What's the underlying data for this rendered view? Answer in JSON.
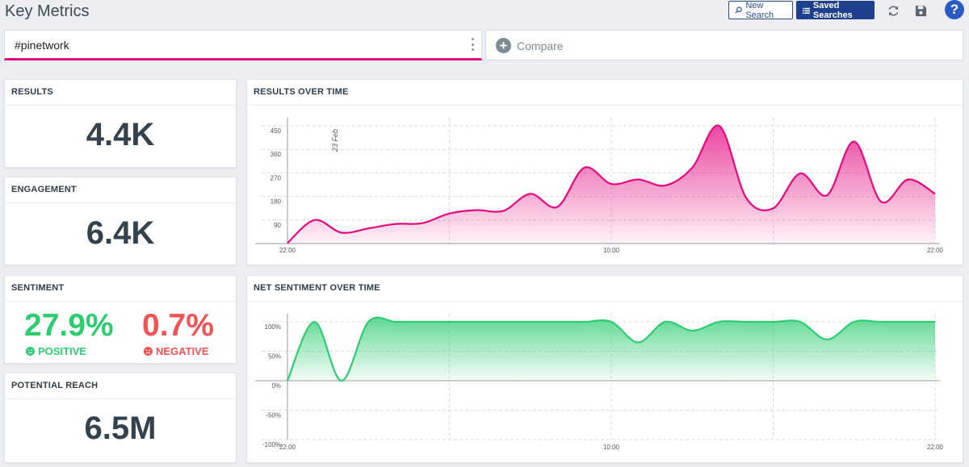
{
  "header": {
    "title": "Key Metrics",
    "new_search_label": "New Search",
    "saved_searches_label": "Saved Searches",
    "help_label": "?"
  },
  "search": {
    "query": "#pinetwork",
    "compare_label": "Compare"
  },
  "metrics": {
    "results": {
      "label": "RESULTS",
      "value": "4.4K"
    },
    "engagement": {
      "label": "ENGAGEMENT",
      "value": "6.4K"
    },
    "sentiment": {
      "label": "SENTIMENT",
      "positive_value": "27.9%",
      "positive_label": "POSITIVE",
      "negative_value": "0.7%",
      "negative_label": "NEGATIVE"
    },
    "reach": {
      "label": "POTENTIAL REACH",
      "value": "6.5M"
    }
  },
  "colors": {
    "accent": "#e5097f",
    "positive": "#2ecc71",
    "negative": "#f05454",
    "primary_button": "#1d3f8c"
  },
  "chart_data": [
    {
      "type": "area",
      "title": "RESULTS OVER TIME",
      "x_tick_labels": [
        "22:00",
        "10:00",
        "22:00"
      ],
      "annotation": "23 Feb",
      "y_ticks": [
        90,
        180,
        270,
        360,
        450
      ],
      "ylim": [
        0,
        450
      ],
      "grid": true,
      "color": "#e5097f",
      "series": [
        {
          "values": [
            2,
            90,
            42,
            58,
            75,
            78,
            115,
            128,
            125,
            190,
            140,
            290,
            228,
            245,
            222,
            290,
            450,
            175,
            135,
            268,
            185,
            390,
            160,
            245,
            190
          ]
        }
      ]
    },
    {
      "type": "area",
      "title": "NET SENTIMENT OVER TIME",
      "x_tick_labels": [
        "22:00",
        "10:00",
        "22:00"
      ],
      "y_ticks": [
        "100%",
        "50%",
        "0%",
        "-50%",
        "-100%"
      ],
      "ylim": [
        -100,
        100
      ],
      "grid": true,
      "color": "#2ecc71",
      "series": [
        {
          "values": [
            0,
            100,
            0,
            100,
            100,
            100,
            100,
            100,
            100,
            100,
            100,
            100,
            100,
            65,
            100,
            85,
            100,
            100,
            100,
            100,
            70,
            100,
            100,
            100,
            100
          ]
        }
      ]
    }
  ]
}
